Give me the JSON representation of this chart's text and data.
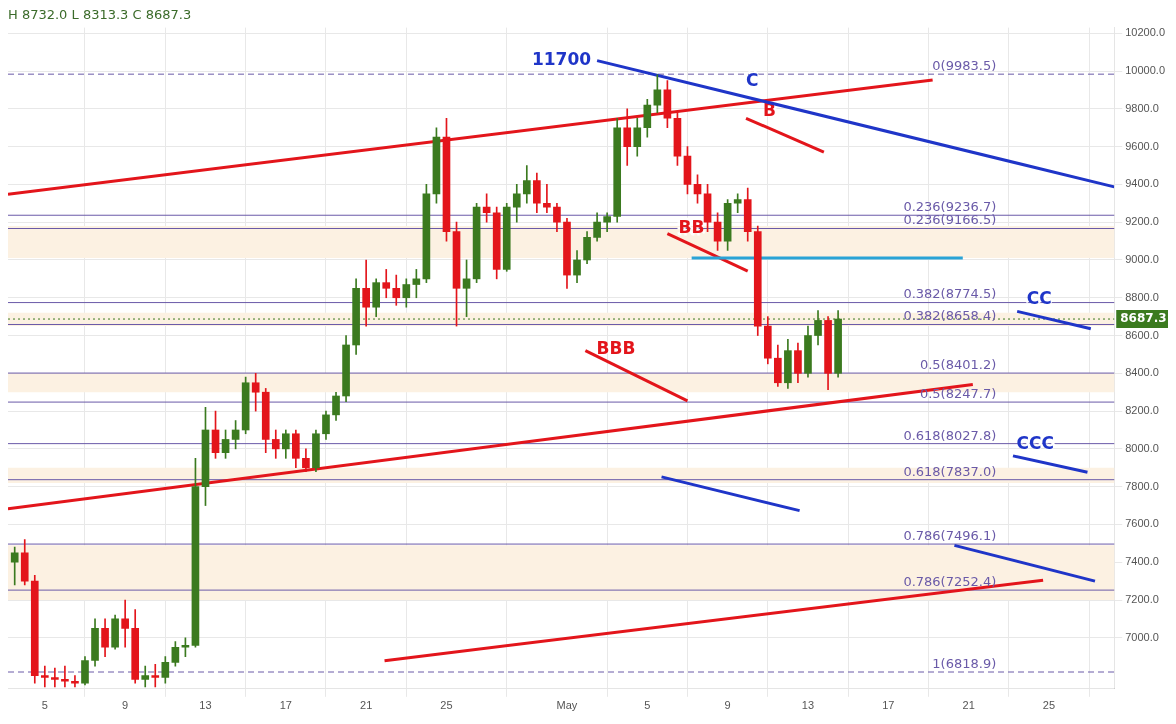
{
  "chart_data": {
    "type": "candlestick",
    "title": "H 8732.0 L 8313.3 C 8687.3",
    "grid": true,
    "marker": "none",
    "xlim": [
      "--04-03T04:00",
      "--05-28T06:00"
    ],
    "xticks": [
      {
        "value": "--04-05",
        "label": "5"
      },
      {
        "value": "--04-09",
        "label": "9"
      },
      {
        "value": "--04-13",
        "label": "13"
      },
      {
        "value": "--04-17",
        "label": "17"
      },
      {
        "value": "--04-21",
        "label": "21"
      },
      {
        "value": "--04-25",
        "label": "25"
      },
      {
        "value": "--05-01",
        "label": "May"
      },
      {
        "value": "--05-05",
        "label": "5"
      },
      {
        "value": "--05-09",
        "label": "9"
      },
      {
        "value": "--05-13",
        "label": "13"
      },
      {
        "value": "--05-17",
        "label": "17"
      },
      {
        "value": "--05-21",
        "label": "21"
      },
      {
        "value": "--05-25",
        "label": "25"
      }
    ],
    "ylim": [
      6730,
      10230
    ],
    "yticks": [
      {
        "value": 7000,
        "label": "7000.0"
      },
      {
        "value": 7200,
        "label": "7200.0"
      },
      {
        "value": 7400,
        "label": "7400.0"
      },
      {
        "value": 7600,
        "label": "7600.0"
      },
      {
        "value": 7800,
        "label": "7800.0"
      },
      {
        "value": 8000,
        "label": "8000.0"
      },
      {
        "value": 8200,
        "label": "8200.0"
      },
      {
        "value": 8400,
        "label": "8400.0"
      },
      {
        "value": 8600,
        "label": "8600.0"
      },
      {
        "value": 8800,
        "label": "8800.0"
      },
      {
        "value": 9000,
        "label": "9000.0"
      },
      {
        "value": 9200,
        "label": "9200.0"
      },
      {
        "value": 9400,
        "label": "9400.0"
      },
      {
        "value": 9600,
        "label": "9600.0"
      },
      {
        "value": 9800,
        "label": "9800.0"
      },
      {
        "value": 10000,
        "label": "10000.0"
      },
      {
        "value": 10200,
        "label": "10200.0"
      }
    ],
    "series": [
      {
        "type": "candlestick",
        "x": [
          "--04-03T12:00",
          "--04-04T00:00",
          "--04-04T12:00",
          "--04-05T00:00",
          "--04-05T12:00",
          "--04-06T00:00",
          "--04-06T12:00",
          "--04-07T00:00",
          "--04-07T12:00",
          "--04-08T00:00",
          "--04-08T12:00",
          "--04-09T00:00",
          "--04-09T12:00",
          "--04-10T00:00",
          "--04-10T12:00",
          "--04-11T00:00",
          "--04-11T12:00",
          "--04-12T00:00",
          "--04-12T12:00",
          "--04-13T00:00",
          "--04-13T12:00",
          "--04-14T00:00",
          "--04-14T12:00",
          "--04-15T00:00",
          "--04-15T12:00",
          "--04-16T00:00",
          "--04-16T12:00",
          "--04-17T00:00",
          "--04-17T12:00",
          "--04-18T00:00",
          "--04-18T12:00",
          "--04-19T00:00",
          "--04-19T12:00",
          "--04-20T00:00",
          "--04-20T12:00",
          "--04-21T00:00",
          "--04-21T12:00",
          "--04-22T00:00",
          "--04-22T12:00",
          "--04-23T00:00",
          "--04-23T12:00",
          "--04-24T00:00",
          "--04-24T12:00",
          "--04-25T00:00",
          "--04-25T12:00",
          "--04-26T00:00",
          "--04-26T12:00",
          "--04-27T00:00",
          "--04-27T12:00",
          "--04-28T00:00",
          "--04-28T12:00",
          "--04-29T00:00",
          "--04-29T12:00",
          "--04-30T00:00",
          "--04-30T12:00",
          "--05-01T00:00",
          "--05-01T12:00",
          "--05-02T00:00",
          "--05-02T12:00",
          "--05-03T00:00",
          "--05-03T12:00",
          "--05-04T00:00",
          "--05-04T12:00",
          "--05-05T00:00",
          "--05-05T12:00",
          "--05-06T00:00",
          "--05-06T12:00",
          "--05-07T00:00",
          "--05-07T12:00",
          "--05-08T00:00",
          "--05-08T12:00",
          "--05-09T00:00",
          "--05-09T12:00",
          "--05-10T00:00",
          "--05-10T12:00",
          "--05-11T00:00",
          "--05-11T12:00",
          "--05-12T00:00",
          "--05-12T12:00",
          "--05-13T00:00",
          "--05-13T12:00",
          "--05-14T00:00",
          "--05-14T12:00"
        ],
        "ohlc": [
          [
            7400,
            7480,
            7280,
            7450
          ],
          [
            7450,
            7520,
            7280,
            7300
          ],
          [
            7300,
            7330,
            6760,
            6800
          ],
          [
            6800,
            6850,
            6740,
            6790
          ],
          [
            6790,
            6840,
            6740,
            6780
          ],
          [
            6780,
            6850,
            6740,
            6770
          ],
          [
            6770,
            6800,
            6740,
            6760
          ],
          [
            6760,
            6900,
            6750,
            6880
          ],
          [
            6880,
            7100,
            6850,
            7050
          ],
          [
            7050,
            7100,
            6900,
            6950
          ],
          [
            6950,
            7120,
            6940,
            7100
          ],
          [
            7100,
            7200,
            6950,
            7050
          ],
          [
            7050,
            7150,
            6760,
            6780
          ],
          [
            6780,
            6850,
            6740,
            6800
          ],
          [
            6800,
            6860,
            6740,
            6790
          ],
          [
            6790,
            6900,
            6760,
            6870
          ],
          [
            6870,
            6980,
            6850,
            6950
          ],
          [
            6950,
            7000,
            6900,
            6960
          ],
          [
            6960,
            7950,
            6950,
            7800
          ],
          [
            7800,
            8220,
            7700,
            8100
          ],
          [
            8100,
            8200,
            7950,
            7980
          ],
          [
            7980,
            8100,
            7950,
            8050
          ],
          [
            8050,
            8150,
            8000,
            8100
          ],
          [
            8100,
            8380,
            8080,
            8350
          ],
          [
            8350,
            8400,
            8200,
            8300
          ],
          [
            8300,
            8320,
            7980,
            8050
          ],
          [
            8050,
            8100,
            7950,
            8000
          ],
          [
            8000,
            8100,
            7950,
            8080
          ],
          [
            8080,
            8100,
            7900,
            7950
          ],
          [
            7950,
            8000,
            7880,
            7900
          ],
          [
            7900,
            8100,
            7880,
            8080
          ],
          [
            8080,
            8200,
            8050,
            8180
          ],
          [
            8180,
            8300,
            8150,
            8280
          ],
          [
            8280,
            8600,
            8250,
            8550
          ],
          [
            8550,
            8900,
            8500,
            8850
          ],
          [
            8850,
            9000,
            8650,
            8750
          ],
          [
            8750,
            8900,
            8700,
            8880
          ],
          [
            8880,
            8950,
            8800,
            8850
          ],
          [
            8850,
            8920,
            8760,
            8800
          ],
          [
            8800,
            8900,
            8750,
            8870
          ],
          [
            8870,
            8950,
            8800,
            8900
          ],
          [
            8900,
            9400,
            8880,
            9350
          ],
          [
            9350,
            9700,
            9300,
            9650
          ],
          [
            9650,
            9750,
            9100,
            9150
          ],
          [
            9150,
            9200,
            8650,
            8850
          ],
          [
            8850,
            9000,
            8700,
            8900
          ],
          [
            8900,
            9300,
            8880,
            9280
          ],
          [
            9280,
            9350,
            9200,
            9250
          ],
          [
            9250,
            9280,
            8900,
            8950
          ],
          [
            8950,
            9300,
            8940,
            9280
          ],
          [
            9280,
            9400,
            9200,
            9350
          ],
          [
            9350,
            9500,
            9300,
            9420
          ],
          [
            9420,
            9460,
            9250,
            9300
          ],
          [
            9300,
            9400,
            9250,
            9280
          ],
          [
            9280,
            9300,
            9150,
            9200
          ],
          [
            9200,
            9220,
            8850,
            8920
          ],
          [
            8920,
            9050,
            8880,
            9000
          ],
          [
            9000,
            9150,
            8980,
            9120
          ],
          [
            9120,
            9250,
            9100,
            9200
          ],
          [
            9200,
            9250,
            9150,
            9230
          ],
          [
            9230,
            9750,
            9200,
            9700
          ],
          [
            9700,
            9800,
            9500,
            9600
          ],
          [
            9600,
            9750,
            9550,
            9700
          ],
          [
            9700,
            9850,
            9650,
            9820
          ],
          [
            9820,
            9980,
            9780,
            9900
          ],
          [
            9900,
            9950,
            9700,
            9750
          ],
          [
            9750,
            9780,
            9500,
            9550
          ],
          [
            9550,
            9600,
            9350,
            9400
          ],
          [
            9400,
            9450,
            9300,
            9350
          ],
          [
            9350,
            9400,
            9150,
            9200
          ],
          [
            9200,
            9250,
            9050,
            9100
          ],
          [
            9100,
            9320,
            9050,
            9300
          ],
          [
            9300,
            9350,
            9250,
            9320
          ],
          [
            9320,
            9380,
            9100,
            9150
          ],
          [
            9150,
            9180,
            8600,
            8650
          ],
          [
            8650,
            8700,
            8450,
            8480
          ],
          [
            8480,
            8550,
            8330,
            8350
          ],
          [
            8350,
            8580,
            8320,
            8520
          ],
          [
            8520,
            8560,
            8350,
            8400
          ],
          [
            8400,
            8650,
            8380,
            8600
          ],
          [
            8600,
            8732,
            8550,
            8680
          ],
          [
            8680,
            8700,
            8313,
            8400
          ],
          [
            8400,
            8732,
            8380,
            8687.3
          ]
        ],
        "colors": [
          "#3b7a1f",
          "#e3151b",
          "#e3151b",
          "#e3151b",
          "#e3151b",
          "#e3151b",
          "#e3151b",
          "#3b7a1f",
          "#3b7a1f",
          "#e3151b",
          "#3b7a1f",
          "#e3151b",
          "#e3151b",
          "#3b7a1f",
          "#e3151b",
          "#3b7a1f",
          "#3b7a1f",
          "#3b7a1f",
          "#3b7a1f",
          "#3b7a1f",
          "#e3151b",
          "#3b7a1f",
          "#3b7a1f",
          "#3b7a1f",
          "#e3151b",
          "#e3151b",
          "#e3151b",
          "#3b7a1f",
          "#e3151b",
          "#e3151b",
          "#3b7a1f",
          "#3b7a1f",
          "#3b7a1f",
          "#3b7a1f",
          "#3b7a1f",
          "#e3151b",
          "#3b7a1f",
          "#e3151b",
          "#e3151b",
          "#3b7a1f",
          "#3b7a1f",
          "#3b7a1f",
          "#3b7a1f",
          "#e3151b",
          "#e3151b",
          "#3b7a1f",
          "#3b7a1f",
          "#e3151b",
          "#e3151b",
          "#3b7a1f",
          "#3b7a1f",
          "#3b7a1f",
          "#e3151b",
          "#e3151b",
          "#e3151b",
          "#e3151b",
          "#3b7a1f",
          "#3b7a1f",
          "#3b7a1f",
          "#3b7a1f",
          "#3b7a1f",
          "#e3151b",
          "#3b7a1f",
          "#3b7a1f",
          "#3b7a1f",
          "#e3151b",
          "#e3151b",
          "#e3151b",
          "#e3151b",
          "#e3151b",
          "#e3151b",
          "#3b7a1f",
          "#3b7a1f",
          "#e3151b",
          "#e3151b",
          "#e3151b",
          "#e3151b",
          "#3b7a1f",
          "#e3151b",
          "#3b7a1f",
          "#3b7a1f",
          "#e3151b",
          "#3b7a1f"
        ]
      },
      {
        "type": "line",
        "name": "C",
        "x": [
          "--05-02T12:00",
          "--05-28T06:00"
        ],
        "values": [
          10055,
          9387
        ],
        "color": "#1f35c8"
      },
      {
        "type": "line",
        "x": [
          "--04-03T04:00",
          "--05-19T05:00"
        ],
        "values": [
          9348,
          9953
        ],
        "color": "#e3151b"
      },
      {
        "type": "line",
        "x": [
          "--04-03T04:00",
          "--05-21T05:00"
        ],
        "values": [
          7683,
          8341
        ],
        "color": "#e3151b"
      },
      {
        "type": "line",
        "x": [
          "--04-21T22:00",
          "--05-24T17:00"
        ],
        "values": [
          6879,
          7305
        ],
        "color": "#e3151b"
      },
      {
        "type": "line",
        "x": [
          "--05-07T05:00",
          "--05-20T17:00"
        ],
        "values": [
          9010,
          9010
        ],
        "color": "#29a3d6"
      },
      {
        "type": "line",
        "x": [
          "--05-20T07:00",
          "--05-27T07:00"
        ],
        "values": [
          7489,
          7300
        ],
        "color": "#1f35c8"
      },
      {
        "type": "line",
        "name": "CCC",
        "x": [
          "--05-23T05:00",
          "--05-26T22:00"
        ],
        "values": [
          7963,
          7876
        ],
        "color": "#1f35c8"
      },
      {
        "type": "line",
        "name": "CC",
        "x": [
          "--05-23T10:00",
          "--05-27T02:00"
        ],
        "values": [
          8728,
          8636
        ],
        "color": "#1f35c8"
      },
      {
        "type": "line",
        "name": "B",
        "x": [
          "--05-09T22:00",
          "--05-13T19:00"
        ],
        "values": [
          9750,
          9571
        ],
        "color": "#e3151b"
      },
      {
        "type": "line",
        "name": "BB",
        "x": [
          "--05-06T00:00",
          "--05-10T00:00"
        ],
        "values": [
          9140,
          8941
        ],
        "color": "#e3151b"
      },
      {
        "type": "line",
        "name": "BBB",
        "x": [
          "--05-01T22:00",
          "--05-07T00:00"
        ],
        "values": [
          8520,
          8254
        ],
        "color": "#e3151b"
      },
      {
        "type": "line",
        "x": [
          "--05-05T17:00",
          "--05-12T14:00"
        ],
        "values": [
          7852,
          7673
        ],
        "color": "#1f35c8"
      }
    ],
    "bands": [
      {
        "axis": "y",
        "from": 9010,
        "to": 9180,
        "color": "#fcf1e2"
      },
      {
        "axis": "y",
        "from": 8650,
        "to": 8720,
        "color": "#fcf1e2"
      },
      {
        "axis": "y",
        "from": 8300,
        "to": 8400,
        "color": "#fcf1e2"
      },
      {
        "axis": "y",
        "from": 7820,
        "to": 7900,
        "color": "#fcf1e2"
      },
      {
        "axis": "y",
        "from": 7200,
        "to": 7490,
        "color": "#fcf1e2"
      }
    ],
    "ref_lines": [
      {
        "axis": "y",
        "value": 9983.5,
        "label": "0(9983.5)",
        "color": "#6a5aa8",
        "line_style": "dashed"
      },
      {
        "axis": "y",
        "value": 9236.7,
        "label": "0.236(9236.7)",
        "color": "#6a5aa8",
        "line_style": "solid"
      },
      {
        "axis": "y",
        "value": 9166.5,
        "label": "0.236(9166.5)",
        "color": "#6a5aa8",
        "line_style": "solid"
      },
      {
        "axis": "y",
        "value": 8774.5,
        "label": "0.382(8774.5)",
        "color": "#6a5aa8",
        "line_style": "solid"
      },
      {
        "axis": "y",
        "value": 8658.4,
        "label": "0.382(8658.4)",
        "color": "#6a5aa8",
        "line_style": "solid"
      },
      {
        "axis": "y",
        "value": 8401.2,
        "label": "0.5(8401.2)",
        "color": "#6a5aa8",
        "line_style": "solid"
      },
      {
        "axis": "y",
        "value": 8247.7,
        "label": "0.5(8247.7)",
        "color": "#6a5aa8",
        "line_style": "solid"
      },
      {
        "axis": "y",
        "value": 8027.8,
        "label": "0.618(8027.8)",
        "color": "#6a5aa8",
        "line_style": "solid"
      },
      {
        "axis": "y",
        "value": 7837.0,
        "label": "0.618(7837.0)",
        "color": "#6a5aa8",
        "line_style": "solid"
      },
      {
        "axis": "y",
        "value": 7496.1,
        "label": "0.786(7496.1)",
        "color": "#6a5aa8",
        "line_style": "solid"
      },
      {
        "axis": "y",
        "value": 7252.4,
        "label": "0.786(7252.4)",
        "color": "#6a5aa8",
        "line_style": "solid"
      },
      {
        "axis": "y",
        "value": 6818.9,
        "label": "1(6818.9)",
        "color": "#6a5aa8",
        "line_style": "dashed"
      },
      {
        "axis": "y",
        "value": 8687.3,
        "label": "8687.3",
        "color": "#3b7a1f",
        "line_style": "dotted"
      }
    ],
    "annotations": [
      {
        "text": "11700",
        "x": "--05-02T12:00",
        "y": 10055
      }
    ]
  }
}
